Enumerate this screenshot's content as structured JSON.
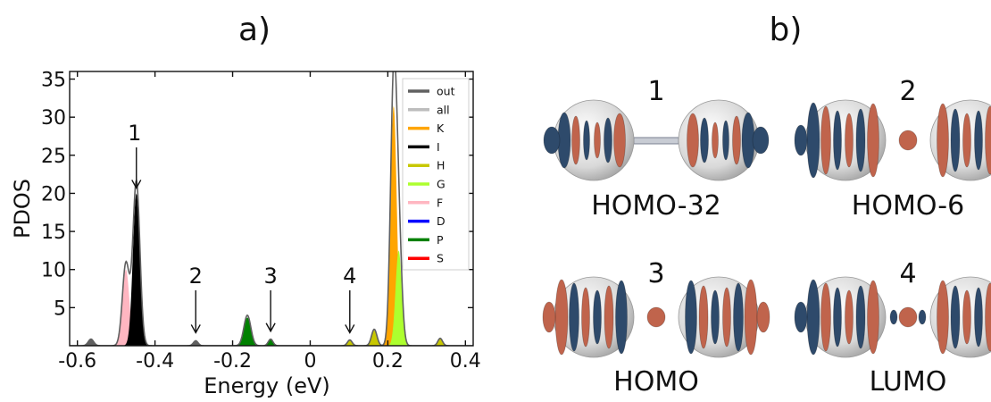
{
  "panels": {
    "a": {
      "label": "a)"
    },
    "b": {
      "label": "b)"
    }
  },
  "chart_data": {
    "type": "area",
    "title": "",
    "xlabel": "Energy (eV)",
    "ylabel": "PDOS",
    "xlim": [
      -0.62,
      0.42
    ],
    "ylim": [
      0,
      36
    ],
    "x_ticks": [
      -0.6,
      -0.4,
      -0.2,
      0,
      0.2,
      0.4
    ],
    "x_tick_labels": [
      "-0.6",
      "-0.4",
      "-0.2",
      "0",
      "0.2",
      "0.4"
    ],
    "y_ticks": [
      5,
      10,
      15,
      20,
      25,
      30,
      35
    ],
    "y_tick_labels": [
      "5",
      "10",
      "15",
      "20",
      "25",
      "30",
      "35"
    ],
    "grid": false,
    "legend_position": "top-right",
    "legend": [
      {
        "name": "out",
        "color": "#606060"
      },
      {
        "name": "all",
        "color": "#bdbdbd"
      },
      {
        "name": "K",
        "color": "#ffa500"
      },
      {
        "name": "I",
        "color": "#000000"
      },
      {
        "name": "H",
        "color": "#c8c800"
      },
      {
        "name": "G",
        "color": "#adff2f"
      },
      {
        "name": "F",
        "color": "#ffb6c1"
      },
      {
        "name": "D",
        "color": "#0000ff"
      },
      {
        "name": "P",
        "color": "#008000"
      },
      {
        "name": "S",
        "color": "#ff0000"
      }
    ],
    "peaks": [
      {
        "series": "F",
        "x": -0.475,
        "y": 10.0,
        "w": 0.009
      },
      {
        "series": "I",
        "x": -0.448,
        "y": 20.0,
        "w": 0.009
      },
      {
        "series": "out",
        "x": -0.565,
        "y": 0.8,
        "w": 0.007
      },
      {
        "series": "out",
        "x": -0.295,
        "y": 0.6,
        "w": 0.006
      },
      {
        "series": "P",
        "x": -0.162,
        "y": 3.7,
        "w": 0.009
      },
      {
        "series": "P",
        "x": -0.102,
        "y": 0.8,
        "w": 0.006
      },
      {
        "series": "H",
        "x": 0.102,
        "y": 0.7,
        "w": 0.006
      },
      {
        "series": "H",
        "x": 0.165,
        "y": 2.0,
        "w": 0.007
      },
      {
        "series": "K",
        "x": 0.215,
        "y": 31.5,
        "w": 0.008
      },
      {
        "series": "G",
        "x": 0.228,
        "y": 12.5,
        "w": 0.008
      },
      {
        "series": "H",
        "x": 0.335,
        "y": 0.9,
        "w": 0.006
      }
    ],
    "annotations": [
      {
        "text": "1",
        "x": -0.448,
        "y_tip": 20.0
      },
      {
        "text": "2",
        "x": -0.295,
        "y_tip": 1.0
      },
      {
        "text": "3",
        "x": -0.102,
        "y_tip": 1.2
      },
      {
        "text": "4",
        "x": 0.102,
        "y_tip": 1.0
      }
    ]
  },
  "orbitals": [
    {
      "number": "1",
      "name": "HOMO-32"
    },
    {
      "number": "2",
      "name": "HOMO-6"
    },
    {
      "number": "3",
      "name": "HOMO"
    },
    {
      "number": "4",
      "name": "LUMO"
    }
  ]
}
